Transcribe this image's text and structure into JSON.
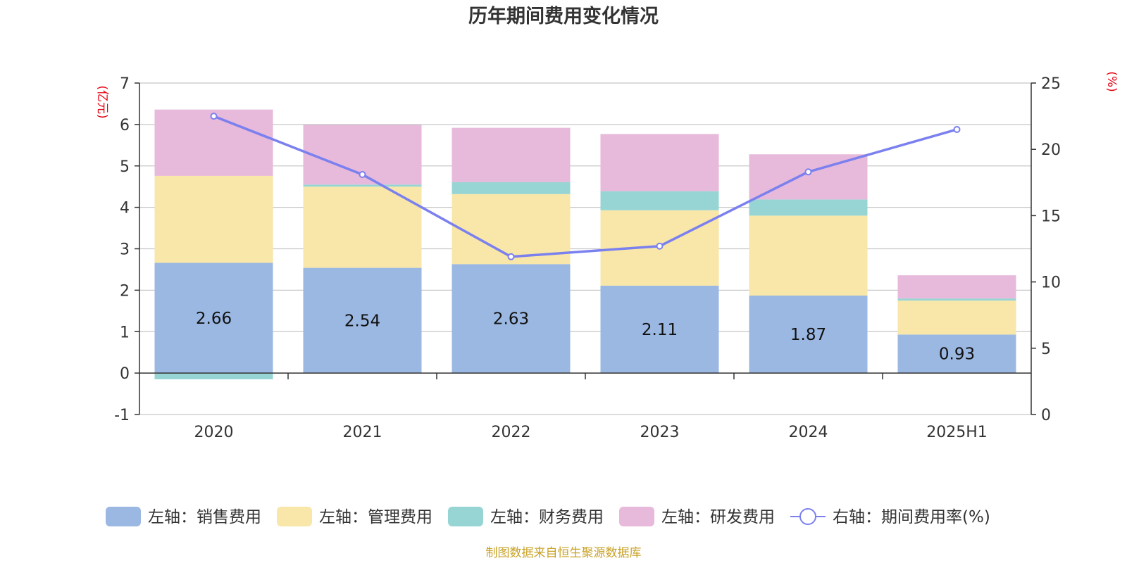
{
  "chart_data": {
    "type": "bar",
    "stacked": true,
    "title": "历年期间费用变化情况",
    "categories": [
      "2020",
      "2021",
      "2022",
      "2023",
      "2024",
      "2025H1"
    ],
    "y_left": {
      "unit": "(亿元)",
      "range": [
        -1,
        7
      ],
      "ticks": [
        "-1",
        "0",
        "1",
        "2",
        "3",
        "4",
        "5",
        "6",
        "7"
      ]
    },
    "y_right": {
      "unit": "(%)",
      "range": [
        0,
        25
      ],
      "ticks": [
        "0",
        "5",
        "10",
        "15",
        "20",
        "25"
      ]
    },
    "series": [
      {
        "name": "左轴：销售费用",
        "axis": "left",
        "color": "#9bb8e2",
        "values": [
          2.66,
          2.54,
          2.63,
          2.11,
          1.87,
          0.93
        ],
        "show_labels": true
      },
      {
        "name": "左轴：管理费用",
        "axis": "left",
        "color": "#f8e7a8",
        "values": [
          2.1,
          1.96,
          1.69,
          1.82,
          1.93,
          0.82
        ]
      },
      {
        "name": "左轴：财务费用",
        "axis": "left",
        "color": "#97d5d5",
        "values": [
          -0.15,
          0.05,
          0.29,
          0.46,
          0.39,
          0.05
        ]
      },
      {
        "name": "左轴：研发费用",
        "axis": "left",
        "color": "#e7b9da",
        "values": [
          1.6,
          1.44,
          1.31,
          1.38,
          1.09,
          0.56
        ]
      }
    ],
    "line": {
      "name": "右轴：期间费用率(%)",
      "axis": "right",
      "color": "#7b80ef",
      "values": [
        22.5,
        18.1,
        11.9,
        12.7,
        18.3,
        21.5
      ]
    },
    "legend_position": "bottom",
    "grid": true,
    "source": "制图数据来自恒生聚源数据库",
    "unit_color": "#e60012",
    "source_color": "#c9a227"
  }
}
